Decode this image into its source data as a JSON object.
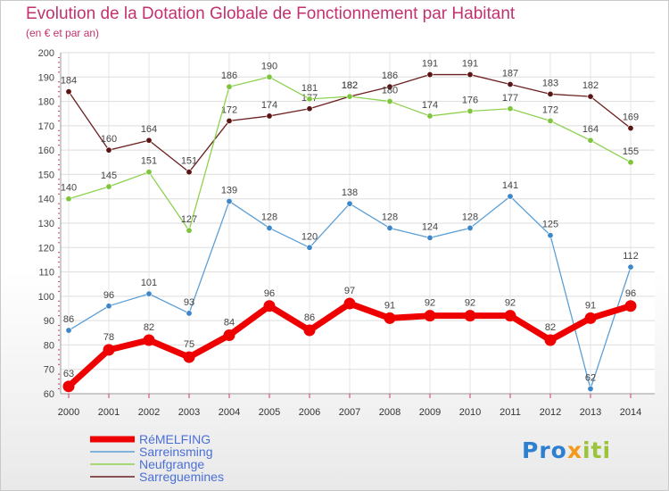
{
  "title": "Evolution de la Dotation Globale de Fonctionnement par Habitant",
  "subtitle": "(en € et par an)",
  "logo": {
    "part1": "Pro",
    "part2": "x",
    "part3": "iti"
  },
  "chart_data": {
    "type": "line",
    "title": "Evolution de la Dotation Globale de Fonctionnement par Habitant",
    "subtitle": "(en € et par an)",
    "xlabel": "",
    "ylabel": "",
    "ylim": [
      60,
      200
    ],
    "ytick_step": 10,
    "grid": true,
    "legend_position": "bottom-left",
    "categories": [
      "2000",
      "2001",
      "2002",
      "2003",
      "2004",
      "2005",
      "2006",
      "2007",
      "2008",
      "2009",
      "2010",
      "2011",
      "2012",
      "2013",
      "2014"
    ],
    "series": [
      {
        "name": "Sarreguemines",
        "color": "#6b1f1f",
        "values": [
          184,
          160,
          164,
          151,
          172,
          174,
          177,
          182,
          186,
          191,
          191,
          187,
          183,
          182,
          169
        ]
      },
      {
        "name": "Neufgrange",
        "color": "#8fd14f",
        "values": [
          140,
          145,
          151,
          127,
          186,
          190,
          181,
          182,
          180,
          174,
          176,
          177,
          172,
          164,
          155
        ]
      },
      {
        "name": "Sarreinsming",
        "color": "#5b9fd6",
        "values": [
          86,
          96,
          101,
          93,
          139,
          128,
          120,
          138,
          128,
          124,
          128,
          141,
          125,
          62,
          112
        ]
      },
      {
        "name": "RéMELFING",
        "color": "#ee0000",
        "values": [
          63,
          78,
          82,
          75,
          84,
          96,
          86,
          97,
          91,
          92,
          92,
          92,
          82,
          91,
          96
        ]
      }
    ],
    "legend": [
      "RéMELFING",
      "Sarreinsming",
      "Neufgrange",
      "Sarreguemines"
    ]
  }
}
